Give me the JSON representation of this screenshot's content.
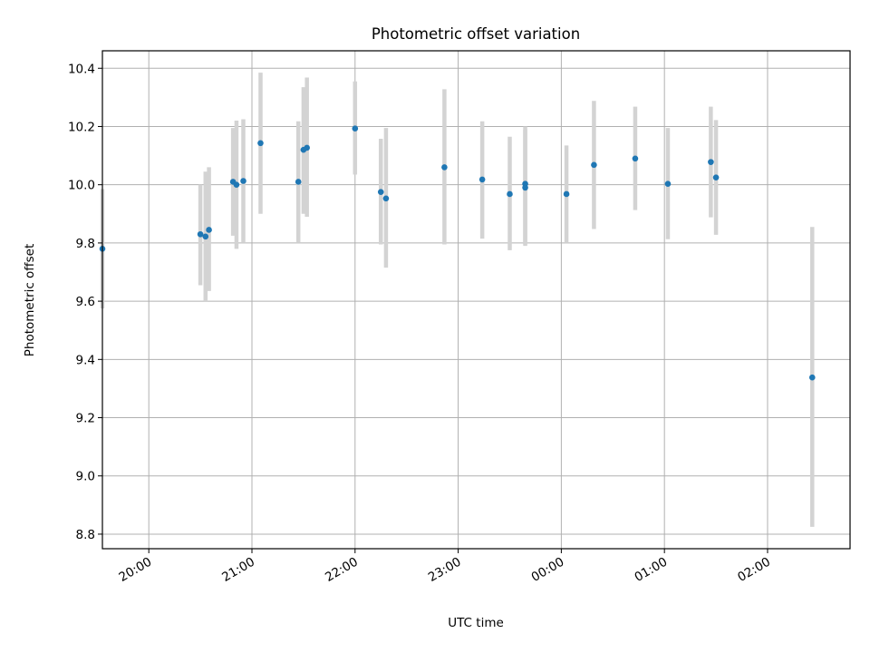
{
  "chart_data": {
    "type": "scatter",
    "title": "Photometric offset variation",
    "xlabel": "UTC time",
    "ylabel": "Photometric offset",
    "x_unit": "UTC time, minutes after midnight (values past 24:00 run into the next day)",
    "xlim": [
      "19:33",
      "02:48"
    ],
    "ylim": [
      8.75,
      10.46
    ],
    "x_ticks": [
      {
        "label": "20:00",
        "x": "20:00"
      },
      {
        "label": "21:00",
        "x": "21:00"
      },
      {
        "label": "22:00",
        "x": "22:00"
      },
      {
        "label": "23:00",
        "x": "23:00"
      },
      {
        "label": "00:00",
        "x": "00:00"
      },
      {
        "label": "01:00",
        "x": "01:00"
      },
      {
        "label": "02:00",
        "x": "02:00"
      }
    ],
    "y_ticks": [
      {
        "label": "8.8",
        "y": 8.8
      },
      {
        "label": "9.0",
        "y": 9.0
      },
      {
        "label": "9.2",
        "y": 9.2
      },
      {
        "label": "9.4",
        "y": 9.4
      },
      {
        "label": "9.6",
        "y": 9.6
      },
      {
        "label": "9.8",
        "y": 9.8
      },
      {
        "label": "10.0",
        "y": 10.0
      },
      {
        "label": "10.2",
        "y": 10.2
      },
      {
        "label": "10.4",
        "y": 10.4
      }
    ],
    "grid": true,
    "marker_color": "#1f77b4",
    "errorbar_color": "#d3d3d3",
    "points": [
      {
        "x": "19:33",
        "y": 9.78,
        "ylow": 9.575,
        "yhigh": 9.985
      },
      {
        "x": "20:30",
        "y": 9.83,
        "ylow": 9.655,
        "yhigh": 10.0
      },
      {
        "x": "20:33",
        "y": 9.822,
        "ylow": 9.6,
        "yhigh": 10.045
      },
      {
        "x": "20:35",
        "y": 9.845,
        "ylow": 9.635,
        "yhigh": 10.06
      },
      {
        "x": "20:49",
        "y": 10.01,
        "ylow": 9.825,
        "yhigh": 10.195
      },
      {
        "x": "20:51",
        "y": 10.0,
        "ylow": 9.78,
        "yhigh": 10.22
      },
      {
        "x": "20:55",
        "y": 10.013,
        "ylow": 9.8,
        "yhigh": 10.225
      },
      {
        "x": "21:05",
        "y": 10.143,
        "ylow": 9.9,
        "yhigh": 10.385
      },
      {
        "x": "21:27",
        "y": 10.01,
        "ylow": 9.8,
        "yhigh": 10.218
      },
      {
        "x": "21:30",
        "y": 10.12,
        "ylow": 9.9,
        "yhigh": 10.335
      },
      {
        "x": "21:32",
        "y": 10.127,
        "ylow": 9.89,
        "yhigh": 10.368
      },
      {
        "x": "22:00",
        "y": 10.193,
        "ylow": 10.035,
        "yhigh": 10.355
      },
      {
        "x": "22:15",
        "y": 9.975,
        "ylow": 9.795,
        "yhigh": 10.158
      },
      {
        "x": "22:18",
        "y": 9.953,
        "ylow": 9.715,
        "yhigh": 10.195
      },
      {
        "x": "22:52",
        "y": 10.06,
        "ylow": 9.795,
        "yhigh": 10.328
      },
      {
        "x": "23:14",
        "y": 10.018,
        "ylow": 9.815,
        "yhigh": 10.218
      },
      {
        "x": "23:30",
        "y": 9.968,
        "ylow": 9.775,
        "yhigh": 10.165
      },
      {
        "x": "23:39",
        "y": 10.003,
        "ylow": 9.795,
        "yhigh": 10.2
      },
      {
        "x": "23:39",
        "y": 9.99,
        "ylow": 9.79,
        "yhigh": 10.19
      },
      {
        "x": "00:03",
        "y": 9.968,
        "ylow": 9.8,
        "yhigh": 10.135
      },
      {
        "x": "00:19",
        "y": 10.068,
        "ylow": 9.848,
        "yhigh": 10.288
      },
      {
        "x": "00:43",
        "y": 10.09,
        "ylow": 9.913,
        "yhigh": 10.268
      },
      {
        "x": "01:02",
        "y": 10.003,
        "ylow": 9.813,
        "yhigh": 10.195
      },
      {
        "x": "01:27",
        "y": 10.078,
        "ylow": 9.888,
        "yhigh": 10.268
      },
      {
        "x": "01:30",
        "y": 10.025,
        "ylow": 9.828,
        "yhigh": 10.222
      },
      {
        "x": "02:26",
        "y": 9.338,
        "ylow": 8.825,
        "yhigh": 9.855
      }
    ]
  }
}
